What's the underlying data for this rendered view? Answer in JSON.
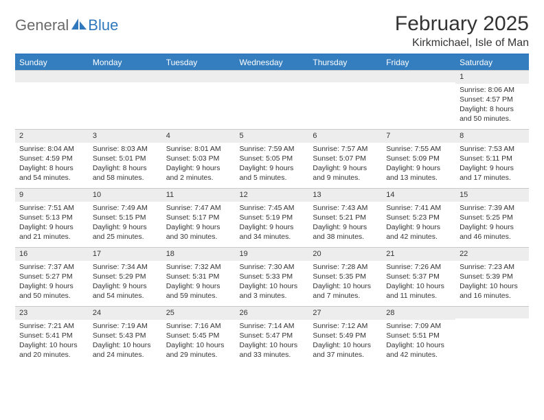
{
  "logo": {
    "part1": "General",
    "part2": "Blue"
  },
  "title": "February 2025",
  "location": "Kirkmichael, Isle of Man",
  "colors": {
    "header_bg": "#347ec0",
    "header_border": "#2f78bd",
    "band_bg": "#ededed",
    "text": "#333333",
    "logo_gray": "#6a6a6a",
    "logo_blue": "#2f78bd"
  },
  "weekdays": [
    "Sunday",
    "Monday",
    "Tuesday",
    "Wednesday",
    "Thursday",
    "Friday",
    "Saturday"
  ],
  "weeks": [
    [
      null,
      null,
      null,
      null,
      null,
      null,
      {
        "n": "1",
        "sr": "Sunrise: 8:06 AM",
        "ss": "Sunset: 4:57 PM",
        "dl": "Daylight: 8 hours and 50 minutes."
      }
    ],
    [
      {
        "n": "2",
        "sr": "Sunrise: 8:04 AM",
        "ss": "Sunset: 4:59 PM",
        "dl": "Daylight: 8 hours and 54 minutes."
      },
      {
        "n": "3",
        "sr": "Sunrise: 8:03 AM",
        "ss": "Sunset: 5:01 PM",
        "dl": "Daylight: 8 hours and 58 minutes."
      },
      {
        "n": "4",
        "sr": "Sunrise: 8:01 AM",
        "ss": "Sunset: 5:03 PM",
        "dl": "Daylight: 9 hours and 2 minutes."
      },
      {
        "n": "5",
        "sr": "Sunrise: 7:59 AM",
        "ss": "Sunset: 5:05 PM",
        "dl": "Daylight: 9 hours and 5 minutes."
      },
      {
        "n": "6",
        "sr": "Sunrise: 7:57 AM",
        "ss": "Sunset: 5:07 PM",
        "dl": "Daylight: 9 hours and 9 minutes."
      },
      {
        "n": "7",
        "sr": "Sunrise: 7:55 AM",
        "ss": "Sunset: 5:09 PM",
        "dl": "Daylight: 9 hours and 13 minutes."
      },
      {
        "n": "8",
        "sr": "Sunrise: 7:53 AM",
        "ss": "Sunset: 5:11 PM",
        "dl": "Daylight: 9 hours and 17 minutes."
      }
    ],
    [
      {
        "n": "9",
        "sr": "Sunrise: 7:51 AM",
        "ss": "Sunset: 5:13 PM",
        "dl": "Daylight: 9 hours and 21 minutes."
      },
      {
        "n": "10",
        "sr": "Sunrise: 7:49 AM",
        "ss": "Sunset: 5:15 PM",
        "dl": "Daylight: 9 hours and 25 minutes."
      },
      {
        "n": "11",
        "sr": "Sunrise: 7:47 AM",
        "ss": "Sunset: 5:17 PM",
        "dl": "Daylight: 9 hours and 30 minutes."
      },
      {
        "n": "12",
        "sr": "Sunrise: 7:45 AM",
        "ss": "Sunset: 5:19 PM",
        "dl": "Daylight: 9 hours and 34 minutes."
      },
      {
        "n": "13",
        "sr": "Sunrise: 7:43 AM",
        "ss": "Sunset: 5:21 PM",
        "dl": "Daylight: 9 hours and 38 minutes."
      },
      {
        "n": "14",
        "sr": "Sunrise: 7:41 AM",
        "ss": "Sunset: 5:23 PM",
        "dl": "Daylight: 9 hours and 42 minutes."
      },
      {
        "n": "15",
        "sr": "Sunrise: 7:39 AM",
        "ss": "Sunset: 5:25 PM",
        "dl": "Daylight: 9 hours and 46 minutes."
      }
    ],
    [
      {
        "n": "16",
        "sr": "Sunrise: 7:37 AM",
        "ss": "Sunset: 5:27 PM",
        "dl": "Daylight: 9 hours and 50 minutes."
      },
      {
        "n": "17",
        "sr": "Sunrise: 7:34 AM",
        "ss": "Sunset: 5:29 PM",
        "dl": "Daylight: 9 hours and 54 minutes."
      },
      {
        "n": "18",
        "sr": "Sunrise: 7:32 AM",
        "ss": "Sunset: 5:31 PM",
        "dl": "Daylight: 9 hours and 59 minutes."
      },
      {
        "n": "19",
        "sr": "Sunrise: 7:30 AM",
        "ss": "Sunset: 5:33 PM",
        "dl": "Daylight: 10 hours and 3 minutes."
      },
      {
        "n": "20",
        "sr": "Sunrise: 7:28 AM",
        "ss": "Sunset: 5:35 PM",
        "dl": "Daylight: 10 hours and 7 minutes."
      },
      {
        "n": "21",
        "sr": "Sunrise: 7:26 AM",
        "ss": "Sunset: 5:37 PM",
        "dl": "Daylight: 10 hours and 11 minutes."
      },
      {
        "n": "22",
        "sr": "Sunrise: 7:23 AM",
        "ss": "Sunset: 5:39 PM",
        "dl": "Daylight: 10 hours and 16 minutes."
      }
    ],
    [
      {
        "n": "23",
        "sr": "Sunrise: 7:21 AM",
        "ss": "Sunset: 5:41 PM",
        "dl": "Daylight: 10 hours and 20 minutes."
      },
      {
        "n": "24",
        "sr": "Sunrise: 7:19 AM",
        "ss": "Sunset: 5:43 PM",
        "dl": "Daylight: 10 hours and 24 minutes."
      },
      {
        "n": "25",
        "sr": "Sunrise: 7:16 AM",
        "ss": "Sunset: 5:45 PM",
        "dl": "Daylight: 10 hours and 29 minutes."
      },
      {
        "n": "26",
        "sr": "Sunrise: 7:14 AM",
        "ss": "Sunset: 5:47 PM",
        "dl": "Daylight: 10 hours and 33 minutes."
      },
      {
        "n": "27",
        "sr": "Sunrise: 7:12 AM",
        "ss": "Sunset: 5:49 PM",
        "dl": "Daylight: 10 hours and 37 minutes."
      },
      {
        "n": "28",
        "sr": "Sunrise: 7:09 AM",
        "ss": "Sunset: 5:51 PM",
        "dl": "Daylight: 10 hours and 42 minutes."
      },
      null
    ]
  ]
}
